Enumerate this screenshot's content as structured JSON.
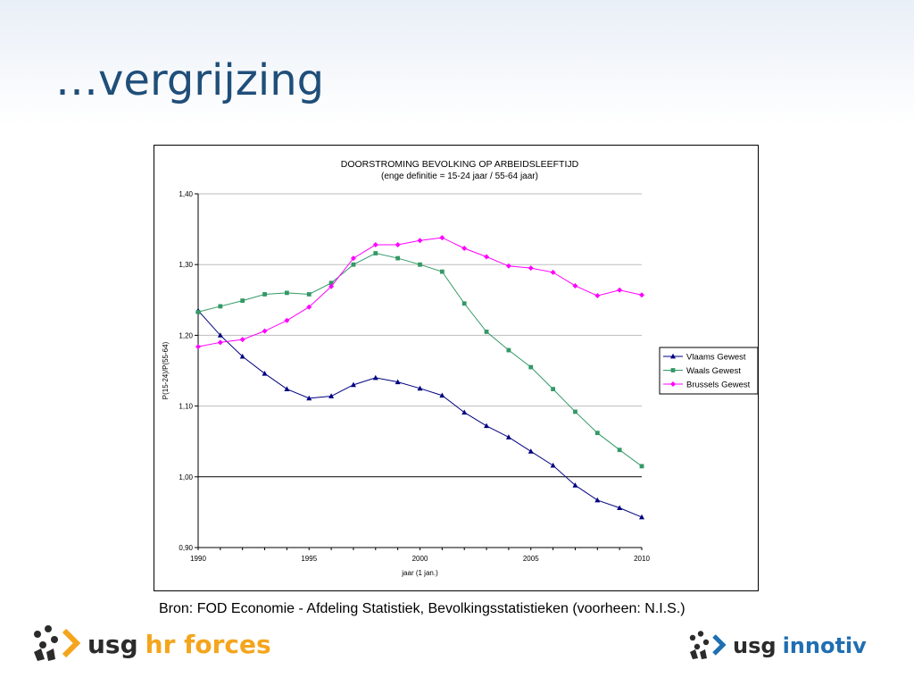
{
  "slide": {
    "title": "…vergrijzing",
    "source": "Bron: FOD Economie - Afdeling Statistiek, Bevolkingsstatistieken  (voorheen: N.I.S.)"
  },
  "logos": {
    "left": {
      "usg": "usg",
      "brand": "hr forces",
      "brand_color": "#f4a51c"
    },
    "right": {
      "usg": "usg",
      "brand": "innotiv",
      "brand_color": "#1f6fb2"
    }
  },
  "chart_data": {
    "type": "line",
    "title": "DOORSTROMING BEVOLKING OP ARBEIDSLEEFTIJD",
    "subtitle": "(enge definitie = 15-24 jaar / 55-64 jaar)",
    "xlabel": "jaar (1 jan.)",
    "ylabel": "P(15-24)/P(55-64)",
    "xlim": [
      1990,
      2010
    ],
    "ylim": [
      0.9,
      1.4
    ],
    "x_ticks": [
      1990,
      1995,
      2000,
      2005,
      2010
    ],
    "x_tick_labels": [
      "1990",
      "1995",
      "2000",
      "2005",
      "2010"
    ],
    "y_ticks": [
      0.9,
      1.0,
      1.1,
      1.2,
      1.3,
      1.4
    ],
    "y_tick_labels": [
      "0,90",
      "1,00",
      "1,10",
      "1,20",
      "1,30",
      "1,40"
    ],
    "grid": true,
    "legend_position": "right",
    "x": [
      1990,
      1991,
      1992,
      1993,
      1994,
      1995,
      1996,
      1997,
      1998,
      1999,
      2000,
      2001,
      2002,
      2003,
      2004,
      2005,
      2006,
      2007,
      2008,
      2009,
      2010
    ],
    "series": [
      {
        "name": "Vlaams Gewest",
        "color": "#000080",
        "marker": "triangle",
        "values": [
          1.235,
          1.2,
          1.17,
          1.146,
          1.124,
          1.111,
          1.114,
          1.13,
          1.14,
          1.134,
          1.125,
          1.115,
          1.091,
          1.072,
          1.056,
          1.036,
          1.016,
          0.988,
          0.967,
          0.956,
          0.943
        ]
      },
      {
        "name": "Waals Gewest",
        "color": "#339966",
        "marker": "square",
        "values": [
          1.233,
          1.241,
          1.249,
          1.258,
          1.26,
          1.258,
          1.274,
          1.3,
          1.316,
          1.309,
          1.3,
          1.29,
          1.245,
          1.205,
          1.179,
          1.155,
          1.124,
          1.092,
          1.062,
          1.038,
          1.015
        ]
      },
      {
        "name": "Brussels Gewest",
        "color": "#ff00ff",
        "marker": "diamond",
        "values": [
          1.184,
          1.19,
          1.194,
          1.206,
          1.221,
          1.24,
          1.269,
          1.309,
          1.328,
          1.328,
          1.334,
          1.338,
          1.323,
          1.311,
          1.298,
          1.295,
          1.289,
          1.27,
          1.256,
          1.264,
          1.257
        ]
      }
    ]
  }
}
